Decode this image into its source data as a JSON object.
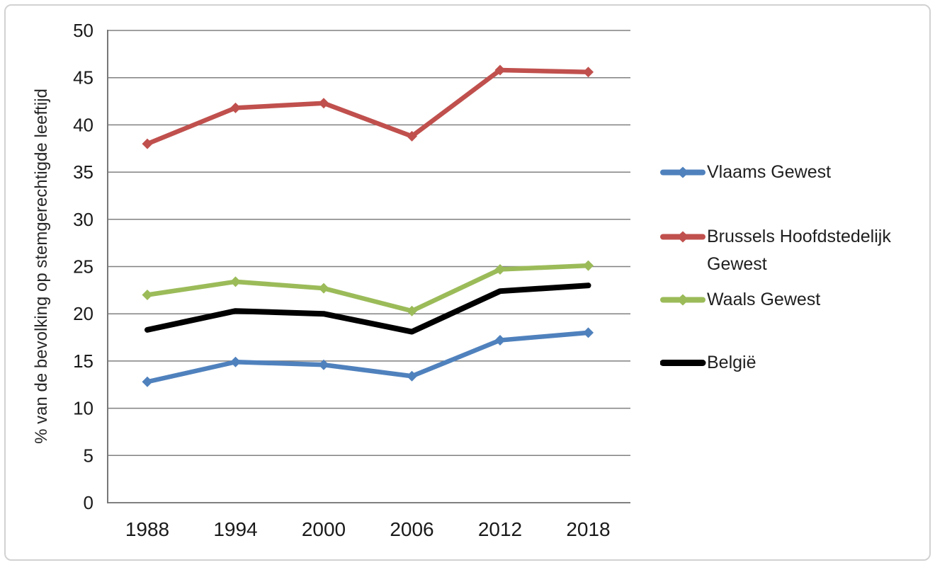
{
  "chart_data": {
    "type": "line",
    "title": "",
    "xlabel": "",
    "ylabel": "% van de bevolking op stemgerechtigde leeftijd",
    "categories": [
      "1988",
      "1994",
      "2000",
      "2006",
      "2012",
      "2018"
    ],
    "series": [
      {
        "name": "Vlaams Gewest",
        "color": "#4F81BD",
        "marker": "diamond",
        "values": [
          12.8,
          14.9,
          14.6,
          13.4,
          17.2,
          18.0
        ]
      },
      {
        "name": "Brussels Hoofdstedelijk Gewest",
        "color": "#C0504D",
        "marker": "diamond",
        "values": [
          38.0,
          41.8,
          42.3,
          38.8,
          45.8,
          45.6
        ]
      },
      {
        "name": "Waals Gewest",
        "color": "#9BBB59",
        "marker": "diamond",
        "values": [
          22.0,
          23.4,
          22.7,
          20.3,
          24.7,
          25.1
        ]
      },
      {
        "name": "België",
        "color": "#000000",
        "marker": "none",
        "values": [
          18.3,
          20.3,
          20.0,
          18.1,
          22.4,
          23.0
        ]
      }
    ],
    "ylim": [
      0,
      50
    ],
    "ytick_step": 5,
    "grid": true,
    "gridline_color": "#808080",
    "axis_line_color": "#777777",
    "tick_label_color": "#1a1a1a",
    "legend_position": "right"
  }
}
